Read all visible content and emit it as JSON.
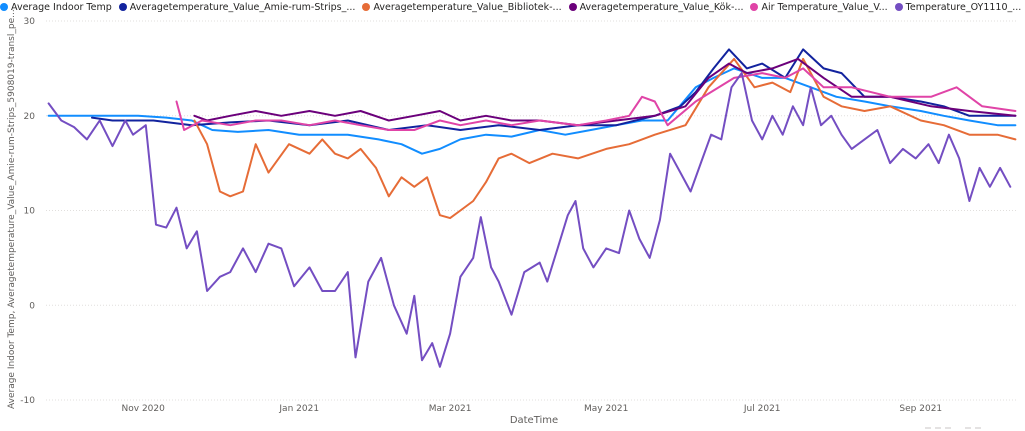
{
  "chart_data": {
    "type": "line",
    "title": "",
    "xlabel": "DateTime",
    "ylabel": "Average Indoor Temp, Averagetemperature_Value_Amie-rum-Strips_5908019-transl_pe...",
    "ylim": [
      -10,
      30
    ],
    "yticks": [
      30,
      20,
      10,
      0,
      -10
    ],
    "xlim": [
      "2020-09-24",
      "2021-10-09"
    ],
    "xticks": [
      {
        "date": "2020-11-01",
        "label": "Nov 2020"
      },
      {
        "date": "2021-01-01",
        "label": "Jan 2021"
      },
      {
        "date": "2021-03-01",
        "label": "Mar 2021"
      },
      {
        "date": "2021-05-01",
        "label": "May 2021"
      },
      {
        "date": "2021-07-01",
        "label": "Jul 2021"
      },
      {
        "date": "2021-09-01",
        "label": "Sep 2021"
      }
    ],
    "grid": true,
    "legend_position": "top",
    "series": [
      {
        "name": "Average Indoor Temp",
        "color": "#118DFF",
        "points": [
          [
            "2020-09-25",
            20
          ],
          [
            "2020-10-15",
            20
          ],
          [
            "2020-10-30",
            20
          ],
          [
            "2020-11-10",
            19.8
          ],
          [
            "2020-11-20",
            19.5
          ],
          [
            "2020-11-28",
            18.5
          ],
          [
            "2020-12-08",
            18.3
          ],
          [
            "2020-12-20",
            18.5
          ],
          [
            "2021-01-01",
            18
          ],
          [
            "2021-01-10",
            18
          ],
          [
            "2021-01-20",
            18
          ],
          [
            "2021-02-01",
            17.5
          ],
          [
            "2021-02-10",
            17
          ],
          [
            "2021-02-18",
            16
          ],
          [
            "2021-02-25",
            16.5
          ],
          [
            "2021-03-05",
            17.5
          ],
          [
            "2021-03-15",
            18
          ],
          [
            "2021-03-25",
            17.8
          ],
          [
            "2021-04-05",
            18.5
          ],
          [
            "2021-04-15",
            18
          ],
          [
            "2021-04-25",
            18.5
          ],
          [
            "2021-05-05",
            19
          ],
          [
            "2021-05-15",
            19.5
          ],
          [
            "2021-05-25",
            19.5
          ],
          [
            "2021-06-05",
            23
          ],
          [
            "2021-06-12",
            24
          ],
          [
            "2021-06-20",
            25
          ],
          [
            "2021-07-01",
            24
          ],
          [
            "2021-07-10",
            24
          ],
          [
            "2021-07-20",
            23
          ],
          [
            "2021-07-30",
            22
          ],
          [
            "2021-08-10",
            21.5
          ],
          [
            "2021-08-20",
            21
          ],
          [
            "2021-09-01",
            20.5
          ],
          [
            "2021-09-10",
            20
          ],
          [
            "2021-09-20",
            19.5
          ],
          [
            "2021-10-01",
            19
          ],
          [
            "2021-10-08",
            19
          ]
        ]
      },
      {
        "name": "Averagetemperature_Value_Amie-rum-Strips_...",
        "color": "#12239E",
        "points": [
          [
            "2020-10-12",
            19.8
          ],
          [
            "2020-10-20",
            19.5
          ],
          [
            "2020-11-05",
            19.5
          ],
          [
            "2020-11-20",
            19
          ],
          [
            "2020-12-05",
            19.3
          ],
          [
            "2020-12-20",
            19.5
          ],
          [
            "2021-01-05",
            19
          ],
          [
            "2021-01-20",
            19.5
          ],
          [
            "2021-02-05",
            18.5
          ],
          [
            "2021-02-20",
            19
          ],
          [
            "2021-03-05",
            18.5
          ],
          [
            "2021-03-20",
            19
          ],
          [
            "2021-04-05",
            18.5
          ],
          [
            "2021-04-20",
            19
          ],
          [
            "2021-05-05",
            19
          ],
          [
            "2021-05-20",
            20
          ],
          [
            "2021-05-30",
            21
          ],
          [
            "2021-06-05",
            22.5
          ],
          [
            "2021-06-12",
            25
          ],
          [
            "2021-06-18",
            27
          ],
          [
            "2021-06-25",
            25
          ],
          [
            "2021-07-01",
            25.5
          ],
          [
            "2021-07-10",
            24
          ],
          [
            "2021-07-17",
            27
          ],
          [
            "2021-07-25",
            25
          ],
          [
            "2021-08-01",
            24.5
          ],
          [
            "2021-08-10",
            22
          ],
          [
            "2021-08-20",
            22
          ],
          [
            "2021-09-01",
            21.5
          ],
          [
            "2021-09-10",
            21
          ],
          [
            "2021-09-20",
            20
          ],
          [
            "2021-10-01",
            20
          ],
          [
            "2021-10-08",
            20
          ]
        ]
      },
      {
        "name": "Averagetemperature_Value_Bibliotek-...",
        "color": "#E66C37",
        "points": [
          [
            "2020-11-21",
            19.5
          ],
          [
            "2020-11-26",
            17
          ],
          [
            "2020-12-01",
            12
          ],
          [
            "2020-12-05",
            11.5
          ],
          [
            "2020-12-10",
            12
          ],
          [
            "2020-12-15",
            17
          ],
          [
            "2020-12-20",
            14
          ],
          [
            "2020-12-28",
            17
          ],
          [
            "2021-01-05",
            16
          ],
          [
            "2021-01-10",
            17.5
          ],
          [
            "2021-01-15",
            16
          ],
          [
            "2021-01-20",
            15.5
          ],
          [
            "2021-01-25",
            16.5
          ],
          [
            "2021-01-31",
            14.5
          ],
          [
            "2021-02-05",
            11.5
          ],
          [
            "2021-02-10",
            13.5
          ],
          [
            "2021-02-15",
            12.5
          ],
          [
            "2021-02-20",
            13.5
          ],
          [
            "2021-02-25",
            9.5
          ],
          [
            "2021-03-01",
            9.2
          ],
          [
            "2021-03-05",
            10
          ],
          [
            "2021-03-10",
            11
          ],
          [
            "2021-03-15",
            13
          ],
          [
            "2021-03-20",
            15.5
          ],
          [
            "2021-03-25",
            16
          ],
          [
            "2021-04-01",
            15
          ],
          [
            "2021-04-10",
            16
          ],
          [
            "2021-04-20",
            15.5
          ],
          [
            "2021-05-01",
            16.5
          ],
          [
            "2021-05-10",
            17
          ],
          [
            "2021-05-20",
            18
          ],
          [
            "2021-06-01",
            19
          ],
          [
            "2021-06-10",
            23
          ],
          [
            "2021-06-20",
            26
          ],
          [
            "2021-06-28",
            23
          ],
          [
            "2021-07-05",
            23.5
          ],
          [
            "2021-07-12",
            22.5
          ],
          [
            "2021-07-17",
            26
          ],
          [
            "2021-07-25",
            22
          ],
          [
            "2021-08-01",
            21
          ],
          [
            "2021-08-10",
            20.5
          ],
          [
            "2021-08-20",
            21
          ],
          [
            "2021-09-01",
            19.5
          ],
          [
            "2021-09-10",
            19
          ],
          [
            "2021-09-20",
            18
          ],
          [
            "2021-10-01",
            18
          ],
          [
            "2021-10-08",
            17.5
          ]
        ]
      },
      {
        "name": "Averagetemperature_Value_Kök-...",
        "color": "#6B007B",
        "points": [
          [
            "2020-11-21",
            20
          ],
          [
            "2020-11-26",
            19.5
          ],
          [
            "2020-12-05",
            20
          ],
          [
            "2020-12-15",
            20.5
          ],
          [
            "2020-12-25",
            20
          ],
          [
            "2021-01-05",
            20.5
          ],
          [
            "2021-01-15",
            20
          ],
          [
            "2021-01-25",
            20.5
          ],
          [
            "2021-02-05",
            19.5
          ],
          [
            "2021-02-15",
            20
          ],
          [
            "2021-02-25",
            20.5
          ],
          [
            "2021-03-05",
            19.5
          ],
          [
            "2021-03-15",
            20
          ],
          [
            "2021-03-25",
            19.5
          ],
          [
            "2021-04-05",
            19.5
          ],
          [
            "2021-04-20",
            19
          ],
          [
            "2021-05-05",
            19.5
          ],
          [
            "2021-05-20",
            20
          ],
          [
            "2021-06-01",
            21
          ],
          [
            "2021-06-10",
            24
          ],
          [
            "2021-06-18",
            25.5
          ],
          [
            "2021-06-25",
            24.5
          ],
          [
            "2021-07-05",
            25
          ],
          [
            "2021-07-15",
            26
          ],
          [
            "2021-07-25",
            24
          ],
          [
            "2021-08-05",
            22
          ],
          [
            "2021-08-20",
            22
          ],
          [
            "2021-09-05",
            21
          ],
          [
            "2021-09-20",
            20.5
          ],
          [
            "2021-10-08",
            20
          ]
        ]
      },
      {
        "name": "Air Temperature_Value_V...",
        "color": "#E044A7",
        "points": [
          [
            "2020-11-14",
            21.5
          ],
          [
            "2020-11-17",
            18.5
          ],
          [
            "2020-11-24",
            19.5
          ],
          [
            "2020-12-05",
            19
          ],
          [
            "2020-12-15",
            19.5
          ],
          [
            "2020-12-25",
            19.5
          ],
          [
            "2021-01-05",
            19
          ],
          [
            "2021-01-15",
            19.5
          ],
          [
            "2021-01-25",
            19
          ],
          [
            "2021-02-05",
            18.5
          ],
          [
            "2021-02-15",
            18.5
          ],
          [
            "2021-02-25",
            19.5
          ],
          [
            "2021-03-05",
            19
          ],
          [
            "2021-03-15",
            19.5
          ],
          [
            "2021-03-25",
            19
          ],
          [
            "2021-04-05",
            19.5
          ],
          [
            "2021-04-20",
            19
          ],
          [
            "2021-05-01",
            19.5
          ],
          [
            "2021-05-10",
            20
          ],
          [
            "2021-05-15",
            22
          ],
          [
            "2021-05-20",
            21.5
          ],
          [
            "2021-05-25",
            19
          ],
          [
            "2021-06-05",
            21.5
          ],
          [
            "2021-06-20",
            24
          ],
          [
            "2021-07-01",
            24.5
          ],
          [
            "2021-07-10",
            24
          ],
          [
            "2021-07-17",
            25
          ],
          [
            "2021-07-25",
            23
          ],
          [
            "2021-08-05",
            23
          ],
          [
            "2021-08-20",
            22
          ],
          [
            "2021-09-05",
            22
          ],
          [
            "2021-09-15",
            23
          ],
          [
            "2021-09-25",
            21
          ],
          [
            "2021-10-08",
            20.5
          ]
        ]
      },
      {
        "name": "Temperature_OY1110_...",
        "color": "#744EC2",
        "points": [
          [
            "2020-09-25",
            21.3
          ],
          [
            "2020-09-30",
            19.5
          ],
          [
            "2020-10-05",
            18.8
          ],
          [
            "2020-10-10",
            17.5
          ],
          [
            "2020-10-15",
            19.5
          ],
          [
            "2020-10-20",
            16.8
          ],
          [
            "2020-10-25",
            19.5
          ],
          [
            "2020-10-28",
            18
          ],
          [
            "2020-11-02",
            19
          ],
          [
            "2020-11-06",
            8.5
          ],
          [
            "2020-11-10",
            8.2
          ],
          [
            "2020-11-14",
            10.3
          ],
          [
            "2020-11-18",
            6
          ],
          [
            "2020-11-22",
            7.8
          ],
          [
            "2020-11-26",
            1.5
          ],
          [
            "2020-12-01",
            3
          ],
          [
            "2020-12-05",
            3.5
          ],
          [
            "2020-12-10",
            6
          ],
          [
            "2020-12-15",
            3.5
          ],
          [
            "2020-12-20",
            6.5
          ],
          [
            "2020-12-25",
            6
          ],
          [
            "2020-12-30",
            2
          ],
          [
            "2021-01-05",
            4
          ],
          [
            "2021-01-10",
            1.5
          ],
          [
            "2021-01-15",
            1.5
          ],
          [
            "2021-01-20",
            3.5
          ],
          [
            "2021-01-23",
            -5.5
          ],
          [
            "2021-01-28",
            2.5
          ],
          [
            "2021-02-02",
            5
          ],
          [
            "2021-02-07",
            0
          ],
          [
            "2021-02-12",
            -3
          ],
          [
            "2021-02-15",
            1
          ],
          [
            "2021-02-18",
            -5.8
          ],
          [
            "2021-02-22",
            -4
          ],
          [
            "2021-02-25",
            -6.5
          ],
          [
            "2021-03-01",
            -3
          ],
          [
            "2021-03-05",
            3
          ],
          [
            "2021-03-10",
            5
          ],
          [
            "2021-03-13",
            9.3
          ],
          [
            "2021-03-17",
            4
          ],
          [
            "2021-03-20",
            2.5
          ],
          [
            "2021-03-25",
            -1
          ],
          [
            "2021-03-30",
            3.5
          ],
          [
            "2021-04-05",
            4.5
          ],
          [
            "2021-04-08",
            2.5
          ],
          [
            "2021-04-12",
            6
          ],
          [
            "2021-04-16",
            9.5
          ],
          [
            "2021-04-19",
            11
          ],
          [
            "2021-04-22",
            6
          ],
          [
            "2021-04-26",
            4
          ],
          [
            "2021-05-01",
            6
          ],
          [
            "2021-05-06",
            5.5
          ],
          [
            "2021-05-10",
            10
          ],
          [
            "2021-05-14",
            7
          ],
          [
            "2021-05-18",
            5
          ],
          [
            "2021-05-22",
            9
          ],
          [
            "2021-05-26",
            16
          ],
          [
            "2021-05-30",
            14
          ],
          [
            "2021-06-03",
            12
          ],
          [
            "2021-06-07",
            15
          ],
          [
            "2021-06-11",
            18
          ],
          [
            "2021-06-15",
            17.5
          ],
          [
            "2021-06-19",
            23
          ],
          [
            "2021-06-23",
            24.5
          ],
          [
            "2021-06-27",
            19.5
          ],
          [
            "2021-07-01",
            17.5
          ],
          [
            "2021-07-05",
            20
          ],
          [
            "2021-07-09",
            18
          ],
          [
            "2021-07-13",
            21
          ],
          [
            "2021-07-17",
            19
          ],
          [
            "2021-07-20",
            23
          ],
          [
            "2021-07-24",
            19
          ],
          [
            "2021-07-28",
            20
          ],
          [
            "2021-08-01",
            18
          ],
          [
            "2021-08-05",
            16.5
          ],
          [
            "2021-08-10",
            17.5
          ],
          [
            "2021-08-15",
            18.5
          ],
          [
            "2021-08-20",
            15
          ],
          [
            "2021-08-25",
            16.5
          ],
          [
            "2021-08-30",
            15.5
          ],
          [
            "2021-09-04",
            17
          ],
          [
            "2021-09-08",
            15
          ],
          [
            "2021-09-12",
            18
          ],
          [
            "2021-09-16",
            15.5
          ],
          [
            "2021-09-20",
            11
          ],
          [
            "2021-09-24",
            14.5
          ],
          [
            "2021-09-28",
            12.5
          ],
          [
            "2021-10-02",
            14.5
          ],
          [
            "2021-10-06",
            12.5
          ]
        ]
      }
    ]
  }
}
